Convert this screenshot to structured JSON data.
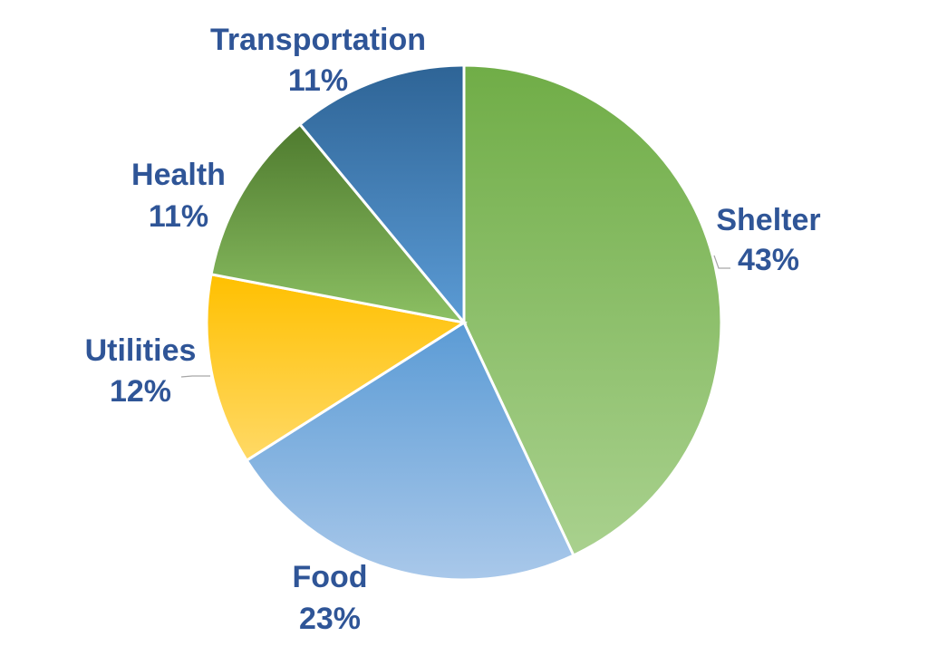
{
  "chart_data": {
    "type": "pie",
    "title": "",
    "slices": [
      {
        "label": "Shelter",
        "value": 43,
        "value_label": "43%",
        "color_top": "#70AD47",
        "color_bottom": "#A9D18E",
        "label_key": "shelter"
      },
      {
        "label": "Food",
        "value": 23,
        "value_label": "23%",
        "color_top": "#5B9BD5",
        "color_bottom": "#A9C8EA",
        "label_key": "food"
      },
      {
        "label": "Utilities",
        "value": 12,
        "value_label": "12%",
        "color_top": "#FFC000",
        "color_bottom": "#FFD966",
        "label_key": "utilities"
      },
      {
        "label": "Health",
        "value": 11,
        "value_label": "11%",
        "color_top": "#4E7A2E",
        "color_bottom": "#8CC063",
        "label_key": "health"
      },
      {
        "label": "Transportation",
        "value": 11,
        "value_label": "11%",
        "color_top": "#2E6496",
        "color_bottom": "#5B9BD5",
        "label_key": "transportation"
      }
    ],
    "start_angle_deg": 0,
    "direction": "clockwise",
    "label_color": "#2F5597",
    "slice_border_color": "#FFFFFF"
  }
}
